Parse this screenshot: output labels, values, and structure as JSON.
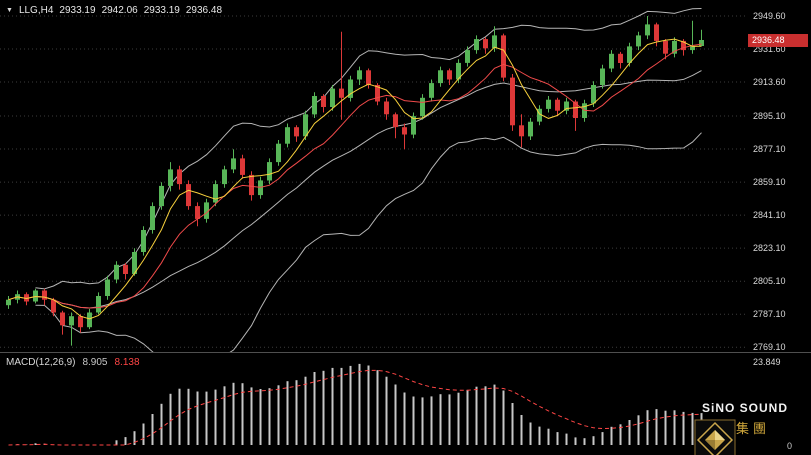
{
  "header": {
    "marker": "▼",
    "symbol": "LLG,H4",
    "open": "2933.19",
    "high": "2942.06",
    "low": "2933.19",
    "close": "2936.48"
  },
  "price_axis": {
    "current_price": "2936.48"
  },
  "macd_panel": {
    "label": "MACD(12,26,9)",
    "main_value": "8.905",
    "signal_value": "8.138",
    "scale_top": "23.849",
    "scale_bottom": "0"
  },
  "logo": {
    "line1": "SiNO SOUND",
    "line2": "漢聲集團"
  },
  "colors": {
    "background": "#000000",
    "grid": "#3c3c3c",
    "up": "#58b658",
    "down": "#dd3838",
    "band": "#b5b5b5",
    "ma_fast": "#f7d03c",
    "ma_slow": "#f04a4a",
    "histogram": "#c8c8c8",
    "signal": "#ff4545",
    "price_tag_bg": "#c92f2f",
    "logo_gold": "#d2a93c"
  },
  "chart_data": {
    "type": "candlestick",
    "symbol": "LLG",
    "timeframe": "H4",
    "title": "LLG,H4 2933.19 2942.06 2933.19 2936.48",
    "ylim": [
      2766.5,
      2958.3
    ],
    "grid_prices": [
      2949.6,
      2931.6,
      2913.6,
      2895.1,
      2877.1,
      2859.1,
      2841.1,
      2823.1,
      2805.1,
      2787.1,
      2769.1
    ],
    "current_price": 2936.48,
    "candles": [
      [
        2792,
        2797,
        2790,
        2795
      ],
      [
        2795,
        2800,
        2793,
        2798
      ],
      [
        2798,
        2799,
        2792,
        2794
      ],
      [
        2794,
        2801,
        2793,
        2800
      ],
      [
        2800,
        2801,
        2792,
        2795
      ],
      [
        2795,
        2796,
        2786,
        2788
      ],
      [
        2788,
        2789,
        2776,
        2781
      ],
      [
        2781,
        2788,
        2770,
        2786
      ],
      [
        2786,
        2787,
        2777,
        2780
      ],
      [
        2780,
        2790,
        2779,
        2788
      ],
      [
        2788,
        2799,
        2787,
        2797
      ],
      [
        2797,
        2808,
        2795,
        2806
      ],
      [
        2806,
        2816,
        2804,
        2814
      ],
      [
        2814,
        2815,
        2806,
        2809
      ],
      [
        2809,
        2823,
        2808,
        2821
      ],
      [
        2821,
        2835,
        2819,
        2833
      ],
      [
        2833,
        2848,
        2831,
        2846
      ],
      [
        2846,
        2859,
        2844,
        2857
      ],
      [
        2857,
        2870,
        2854,
        2866
      ],
      [
        2866,
        2868,
        2855,
        2858
      ],
      [
        2858,
        2860,
        2844,
        2846
      ],
      [
        2846,
        2848,
        2835,
        2839
      ],
      [
        2839,
        2850,
        2837,
        2848
      ],
      [
        2848,
        2860,
        2846,
        2858
      ],
      [
        2858,
        2868,
        2856,
        2866
      ],
      [
        2866,
        2877,
        2864,
        2872
      ],
      [
        2872,
        2874,
        2861,
        2863
      ],
      [
        2863,
        2865,
        2849,
        2852
      ],
      [
        2852,
        2862,
        2850,
        2860
      ],
      [
        2860,
        2872,
        2858,
        2870
      ],
      [
        2870,
        2882,
        2868,
        2880
      ],
      [
        2880,
        2891,
        2878,
        2889
      ],
      [
        2889,
        2890,
        2881,
        2884
      ],
      [
        2884,
        2898,
        2882,
        2896
      ],
      [
        2896,
        2908,
        2894,
        2906
      ],
      [
        2906,
        2907,
        2897,
        2900
      ],
      [
        2900,
        2912,
        2898,
        2910
      ],
      [
        2910,
        2941,
        2893,
        2905
      ],
      [
        2905,
        2917,
        2903,
        2915
      ],
      [
        2915,
        2922,
        2912,
        2920
      ],
      [
        2920,
        2921,
        2910,
        2912
      ],
      [
        2912,
        2913,
        2901,
        2903
      ],
      [
        2903,
        2905,
        2893,
        2896
      ],
      [
        2896,
        2897,
        2883,
        2889
      ],
      [
        2889,
        2891,
        2877,
        2885
      ],
      [
        2885,
        2897,
        2883,
        2895
      ],
      [
        2895,
        2907,
        2893,
        2905
      ],
      [
        2905,
        2915,
        2903,
        2913
      ],
      [
        2913,
        2922,
        2911,
        2920
      ],
      [
        2920,
        2921,
        2912,
        2915
      ],
      [
        2915,
        2926,
        2913,
        2924
      ],
      [
        2924,
        2933,
        2922,
        2931
      ],
      [
        2931,
        2939,
        2929,
        2937
      ],
      [
        2937,
        2938,
        2929,
        2932
      ],
      [
        2932,
        2944,
        2930,
        2939
      ],
      [
        2939,
        2940,
        2914,
        2916
      ],
      [
        2916,
        2918,
        2887,
        2890
      ],
      [
        2890,
        2896,
        2878,
        2884
      ],
      [
        2884,
        2894,
        2882,
        2892
      ],
      [
        2892,
        2901,
        2890,
        2899
      ],
      [
        2899,
        2906,
        2897,
        2904
      ],
      [
        2904,
        2905,
        2895,
        2898
      ],
      [
        2898,
        2905,
        2896,
        2903
      ],
      [
        2903,
        2904,
        2887,
        2894
      ],
      [
        2894,
        2904,
        2892,
        2902
      ],
      [
        2902,
        2914,
        2900,
        2912
      ],
      [
        2912,
        2923,
        2910,
        2921
      ],
      [
        2921,
        2931,
        2919,
        2929
      ],
      [
        2929,
        2930,
        2921,
        2924
      ],
      [
        2924,
        2935,
        2922,
        2933
      ],
      [
        2933,
        2941,
        2931,
        2939
      ],
      [
        2939,
        2949.6,
        2937,
        2945
      ],
      [
        2945,
        2946,
        2933,
        2936
      ],
      [
        2936,
        2937,
        2926,
        2929
      ],
      [
        2929,
        2938,
        2927,
        2936
      ],
      [
        2936,
        2937,
        2928,
        2931
      ],
      [
        2931,
        2947,
        2929,
        2933
      ],
      [
        2933.19,
        2942.06,
        2933.19,
        2936.48
      ]
    ],
    "overlays": [
      {
        "name": "bollinger-bands",
        "period": 20,
        "deviation": 2
      },
      {
        "name": "ma-fast",
        "period": 5
      },
      {
        "name": "ma-slow",
        "period": 10
      }
    ],
    "indicator": {
      "type": "macd",
      "fast": 12,
      "slow": 26,
      "signal_period": 9,
      "main_value": 8.905,
      "signal_value": 8.138,
      "scale_max": 23.849,
      "scale_min": 0
    }
  }
}
